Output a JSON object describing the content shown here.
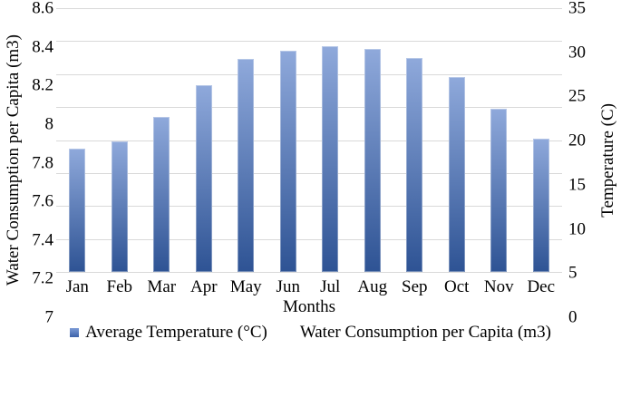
{
  "figure": {
    "left_axis": {
      "title": "Water Consumption per Capita (m3)",
      "ticks": [
        "8.6",
        "8.4",
        "8.2",
        "8",
        "7.8",
        "7.6",
        "7.4",
        "7.2",
        "7"
      ]
    },
    "right_axis": {
      "title": "Temperature (C)",
      "ticks": [
        "35",
        "30",
        "25",
        "20",
        "15",
        "10",
        "5",
        "0"
      ]
    },
    "x_axis": {
      "title": "Months"
    },
    "legend": [
      {
        "marker": "blue-gradient-square",
        "label": "Average Temperature (°C)"
      },
      {
        "marker": "none",
        "label": "Water Consumption per Capita (m3)"
      }
    ],
    "colors": {
      "bar_gradient_top": "#8fa9db",
      "bar_gradient_bottom": "#2e5394",
      "gridline": "#d9d9d9",
      "legend_marker": "#4472c4",
      "text": "#000000"
    }
  },
  "chart_data": {
    "type": "bar",
    "categories": [
      "Jan",
      "Feb",
      "Mar",
      "Apr",
      "May",
      "Jun",
      "Jul",
      "Aug",
      "Sep",
      "Oct",
      "Nov",
      "Dec"
    ],
    "series": [
      {
        "name": "Water Consumption per Capita (m3)",
        "axis": "left",
        "values": [
          7.75,
          7.79,
          7.94,
          8.13,
          8.29,
          8.34,
          8.37,
          8.35,
          8.3,
          8.18,
          7.99,
          7.81
        ]
      },
      {
        "name": "Average Temperature (°C)",
        "axis": "right",
        "values": [
          16.4,
          17.3,
          20.6,
          24.7,
          28.2,
          29.3,
          30.0,
          29.5,
          28.4,
          25.8,
          21.7,
          17.7
        ]
      }
    ],
    "title": "",
    "xlabel": "Months",
    "ylabel_left": "Water Consumption per Capita (m3)",
    "ylabel_right": "Temperature (C)",
    "left_ylim": [
      7,
      8.6
    ],
    "right_ylim": [
      0,
      35
    ],
    "grid": "horizontal",
    "legend_position": "bottom"
  }
}
